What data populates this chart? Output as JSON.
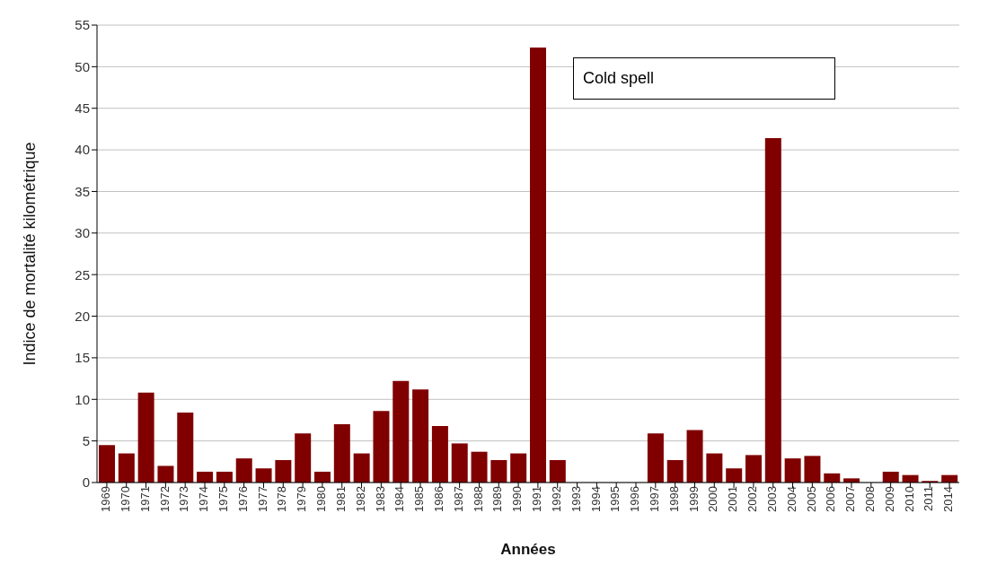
{
  "chart_data": {
    "type": "bar",
    "xlabel": "Années",
    "ylabel": "Indice de mortalité kilométrique",
    "categories": [
      "1969",
      "1970",
      "1971",
      "1972",
      "1973",
      "1974",
      "1975",
      "1976",
      "1977",
      "1978",
      "1979",
      "1980",
      "1981",
      "1982",
      "1983",
      "1984",
      "1985",
      "1986",
      "1987",
      "1988",
      "1989",
      "1990",
      "1991",
      "1992",
      "1993",
      "1994",
      "1995",
      "1996",
      "1997",
      "1998",
      "1999",
      "2000",
      "2001",
      "2002",
      "2003",
      "2004",
      "2005",
      "2006",
      "2007",
      "2008",
      "2009",
      "2010",
      "2011",
      "2014"
    ],
    "values": [
      4.5,
      3.5,
      10.8,
      2.0,
      8.4,
      1.3,
      1.3,
      2.9,
      1.7,
      2.7,
      5.9,
      1.3,
      7.0,
      3.5,
      8.6,
      12.2,
      11.2,
      6.8,
      4.7,
      3.7,
      2.7,
      3.5,
      52.3,
      2.7,
      0,
      0,
      0,
      0,
      5.9,
      2.7,
      6.3,
      3.5,
      1.7,
      3.3,
      41.4,
      2.9,
      3.2,
      1.1,
      0.5,
      0,
      1.3,
      0.9,
      0.2,
      0.9
    ],
    "color": "#800000",
    "ylim": [
      0,
      55
    ],
    "yticks": [
      0,
      5,
      10,
      15,
      20,
      25,
      30,
      35,
      40,
      45,
      50,
      55
    ],
    "grid": "y",
    "annotations": [
      "Cold spell"
    ]
  }
}
